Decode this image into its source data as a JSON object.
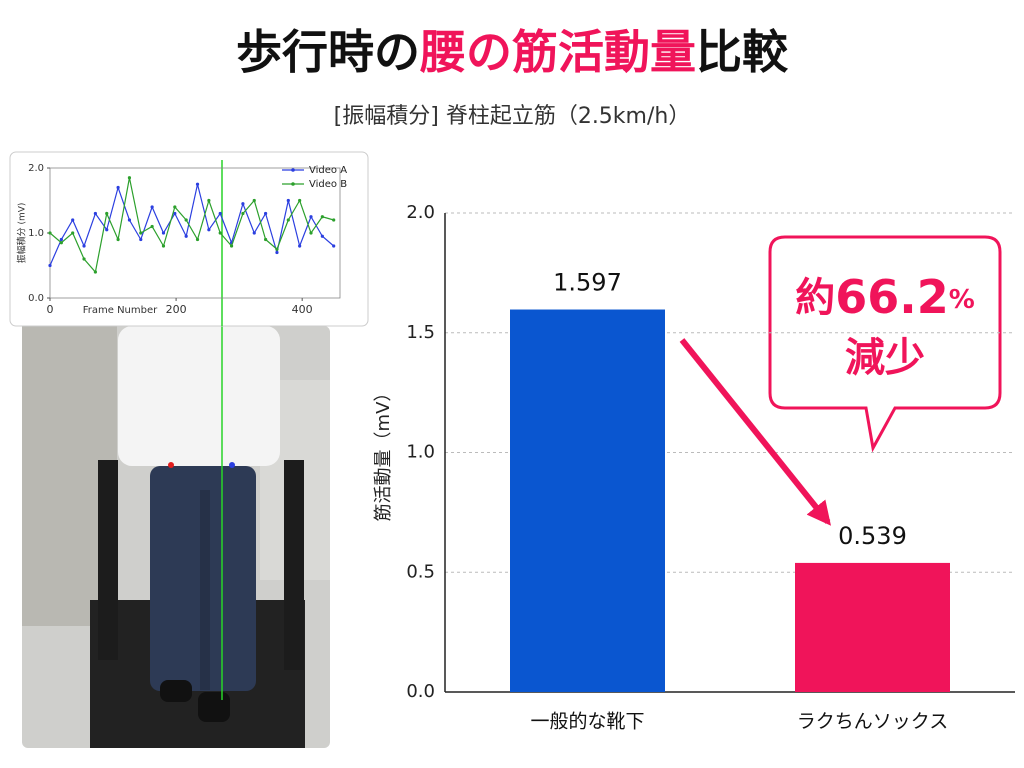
{
  "header": {
    "title_parts": [
      "歩行時の",
      "腰の筋活動量",
      "比較"
    ],
    "subtitle": "[振幅積分] 脊柱起立筋（2.5km/h）"
  },
  "chart_data": [
    {
      "type": "line",
      "xlabel": "Frame Number",
      "ylabel": "振幅積分 (mV)",
      "x": [
        0,
        18,
        36,
        54,
        72,
        90,
        108,
        126,
        144,
        162,
        180,
        198,
        216,
        234,
        252,
        270,
        288,
        306,
        324,
        342,
        360,
        378,
        396,
        414,
        432,
        450
      ],
      "series": [
        {
          "name": "Video A",
          "color": "#2b3fe0",
          "values": [
            0.5,
            0.9,
            1.2,
            0.8,
            1.3,
            1.05,
            1.7,
            1.2,
            0.9,
            1.4,
            1.0,
            1.3,
            0.95,
            1.75,
            1.05,
            1.3,
            0.85,
            1.45,
            1.0,
            1.3,
            0.7,
            1.5,
            0.8,
            1.25,
            0.95,
            0.8
          ]
        },
        {
          "name": "Video B",
          "color": "#2ca02c",
          "values": [
            1.0,
            0.85,
            1.0,
            0.6,
            0.4,
            1.3,
            0.9,
            1.85,
            1.0,
            1.1,
            0.8,
            1.4,
            1.2,
            0.9,
            1.5,
            1.0,
            0.8,
            1.3,
            1.5,
            0.9,
            0.75,
            1.2,
            1.5,
            1.0,
            1.25,
            1.2
          ]
        }
      ],
      "xlim": [
        0,
        460
      ],
      "xticks": [
        0,
        200,
        400
      ],
      "ylim": [
        0,
        2
      ],
      "yticks": [
        {
          "value": 0,
          "label": "0.0"
        },
        {
          "value": 1,
          "label": "1.0"
        },
        {
          "value": 2,
          "label": "2.0"
        }
      ],
      "legend": "upper-right"
    },
    {
      "type": "bar",
      "ylabel": "筋活動量（mV）",
      "categories": [
        "一般的な靴下",
        "ラクちんソックス"
      ],
      "values": [
        1.597,
        0.539
      ],
      "colors": [
        "#0a56d0",
        "#f0145a"
      ],
      "ylim": [
        0,
        2
      ],
      "yticks": [
        {
          "value": 0,
          "label": "0.0"
        },
        {
          "value": 0.5,
          "label": "0.5"
        },
        {
          "value": 1,
          "label": "1.0"
        },
        {
          "value": 1.5,
          "label": "1.5"
        },
        {
          "value": 2,
          "label": "2.0"
        }
      ],
      "grid": true,
      "annotation": {
        "prefix": "約",
        "number": "66.2",
        "unit": "%",
        "line2": "減少"
      }
    }
  ]
}
